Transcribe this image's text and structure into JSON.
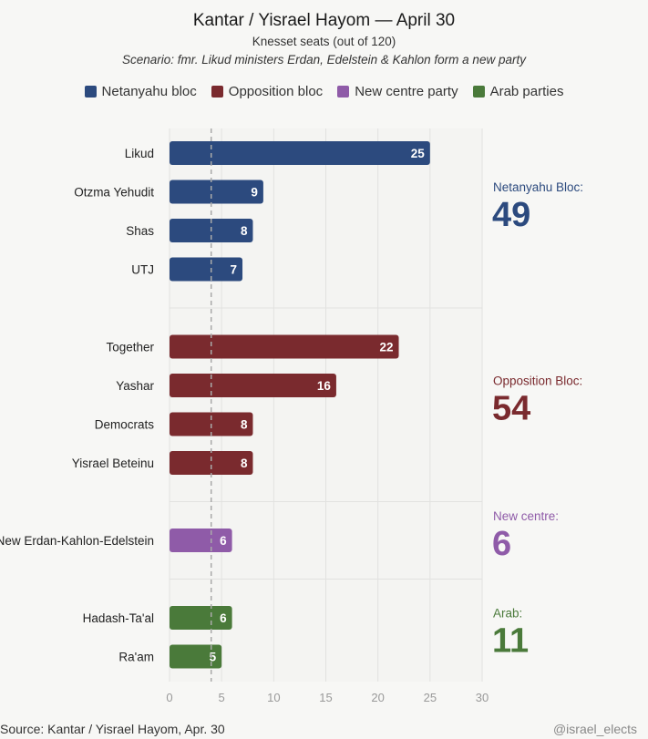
{
  "header": {
    "title": "Kantar / Yisrael Hayom — April 30",
    "subtitle": "Knesset seats (out of 120)",
    "scenario": "Scenario: fmr. Likud ministers Erdan, Edelstein & Kahlon form a new party"
  },
  "legend": [
    {
      "label": "Netanyahu bloc",
      "color": "#2c4a7e"
    },
    {
      "label": "Opposition bloc",
      "color": "#7a2a2e"
    },
    {
      "label": "New centre party",
      "color": "#8f5ba8"
    },
    {
      "label": "Arab parties",
      "color": "#4a7a3a"
    }
  ],
  "chart_data": {
    "type": "bar",
    "orientation": "horizontal",
    "xlim": [
      0,
      30
    ],
    "x_ticks": [
      0,
      5,
      10,
      15,
      20,
      25,
      30
    ],
    "reference_line": 4,
    "grid": true,
    "groups": [
      {
        "name": "Netanyahu bloc",
        "color": "#2c4a7e",
        "total_label": "Netanyahu Bloc:",
        "total": 49,
        "bars": [
          {
            "label": "Likud",
            "value": 25
          },
          {
            "label": "Otzma Yehudit",
            "value": 9
          },
          {
            "label": "Shas",
            "value": 8
          },
          {
            "label": "UTJ",
            "value": 7
          }
        ]
      },
      {
        "name": "Opposition bloc",
        "color": "#7a2a2e",
        "total_label": "Opposition Bloc:",
        "total": 54,
        "bars": [
          {
            "label": "Together",
            "value": 22
          },
          {
            "label": "Yashar",
            "value": 16
          },
          {
            "label": "Democrats",
            "value": 8
          },
          {
            "label": "Yisrael Beteinu",
            "value": 8
          }
        ]
      },
      {
        "name": "New centre party",
        "color": "#8f5ba8",
        "total_label": "New centre:",
        "total": 6,
        "bars": [
          {
            "label": "New Erdan-Kahlon-Edelstein",
            "value": 6
          }
        ]
      },
      {
        "name": "Arab parties",
        "color": "#4a7a3a",
        "total_label": "Arab:",
        "total": 11,
        "bars": [
          {
            "label": "Hadash-Ta'al",
            "value": 6
          },
          {
            "label": "Ra'am",
            "value": 5
          }
        ]
      }
    ]
  },
  "footer": {
    "source": "Source: Kantar / Yisrael Hayom, Apr. 30",
    "handle": "@israel_elects"
  }
}
